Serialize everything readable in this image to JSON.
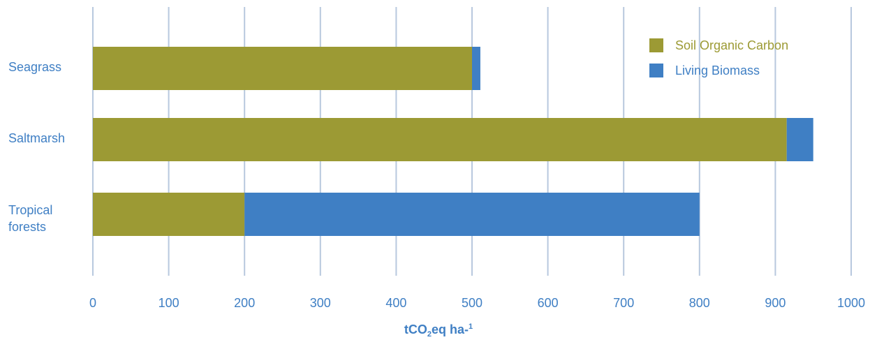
{
  "colors": {
    "soil": "#9c9a34",
    "biomass": "#3f7fc4",
    "grid": "#b8c8de",
    "text": "#3f7fc4"
  },
  "chart_data": {
    "type": "bar",
    "orientation": "horizontal",
    "stacked": true,
    "categories": [
      "Seagrass",
      "Saltmarsh",
      "Tropical forests"
    ],
    "series": [
      {
        "name": "Soil Organic Carbon",
        "values": [
          500,
          915,
          200
        ]
      },
      {
        "name": "Living Biomass",
        "values": [
          11,
          35,
          600
        ]
      }
    ],
    "xlim": [
      0,
      1000
    ],
    "xticks": [
      "0",
      "100",
      "200",
      "300",
      "400",
      "500",
      "600",
      "700",
      "800",
      "900",
      "1000"
    ],
    "xlabel": {
      "base": "tCO",
      "sub": "2",
      "mid": "eq ha-",
      "sup": "1"
    },
    "grid": "vertical",
    "legend": "top-right"
  }
}
